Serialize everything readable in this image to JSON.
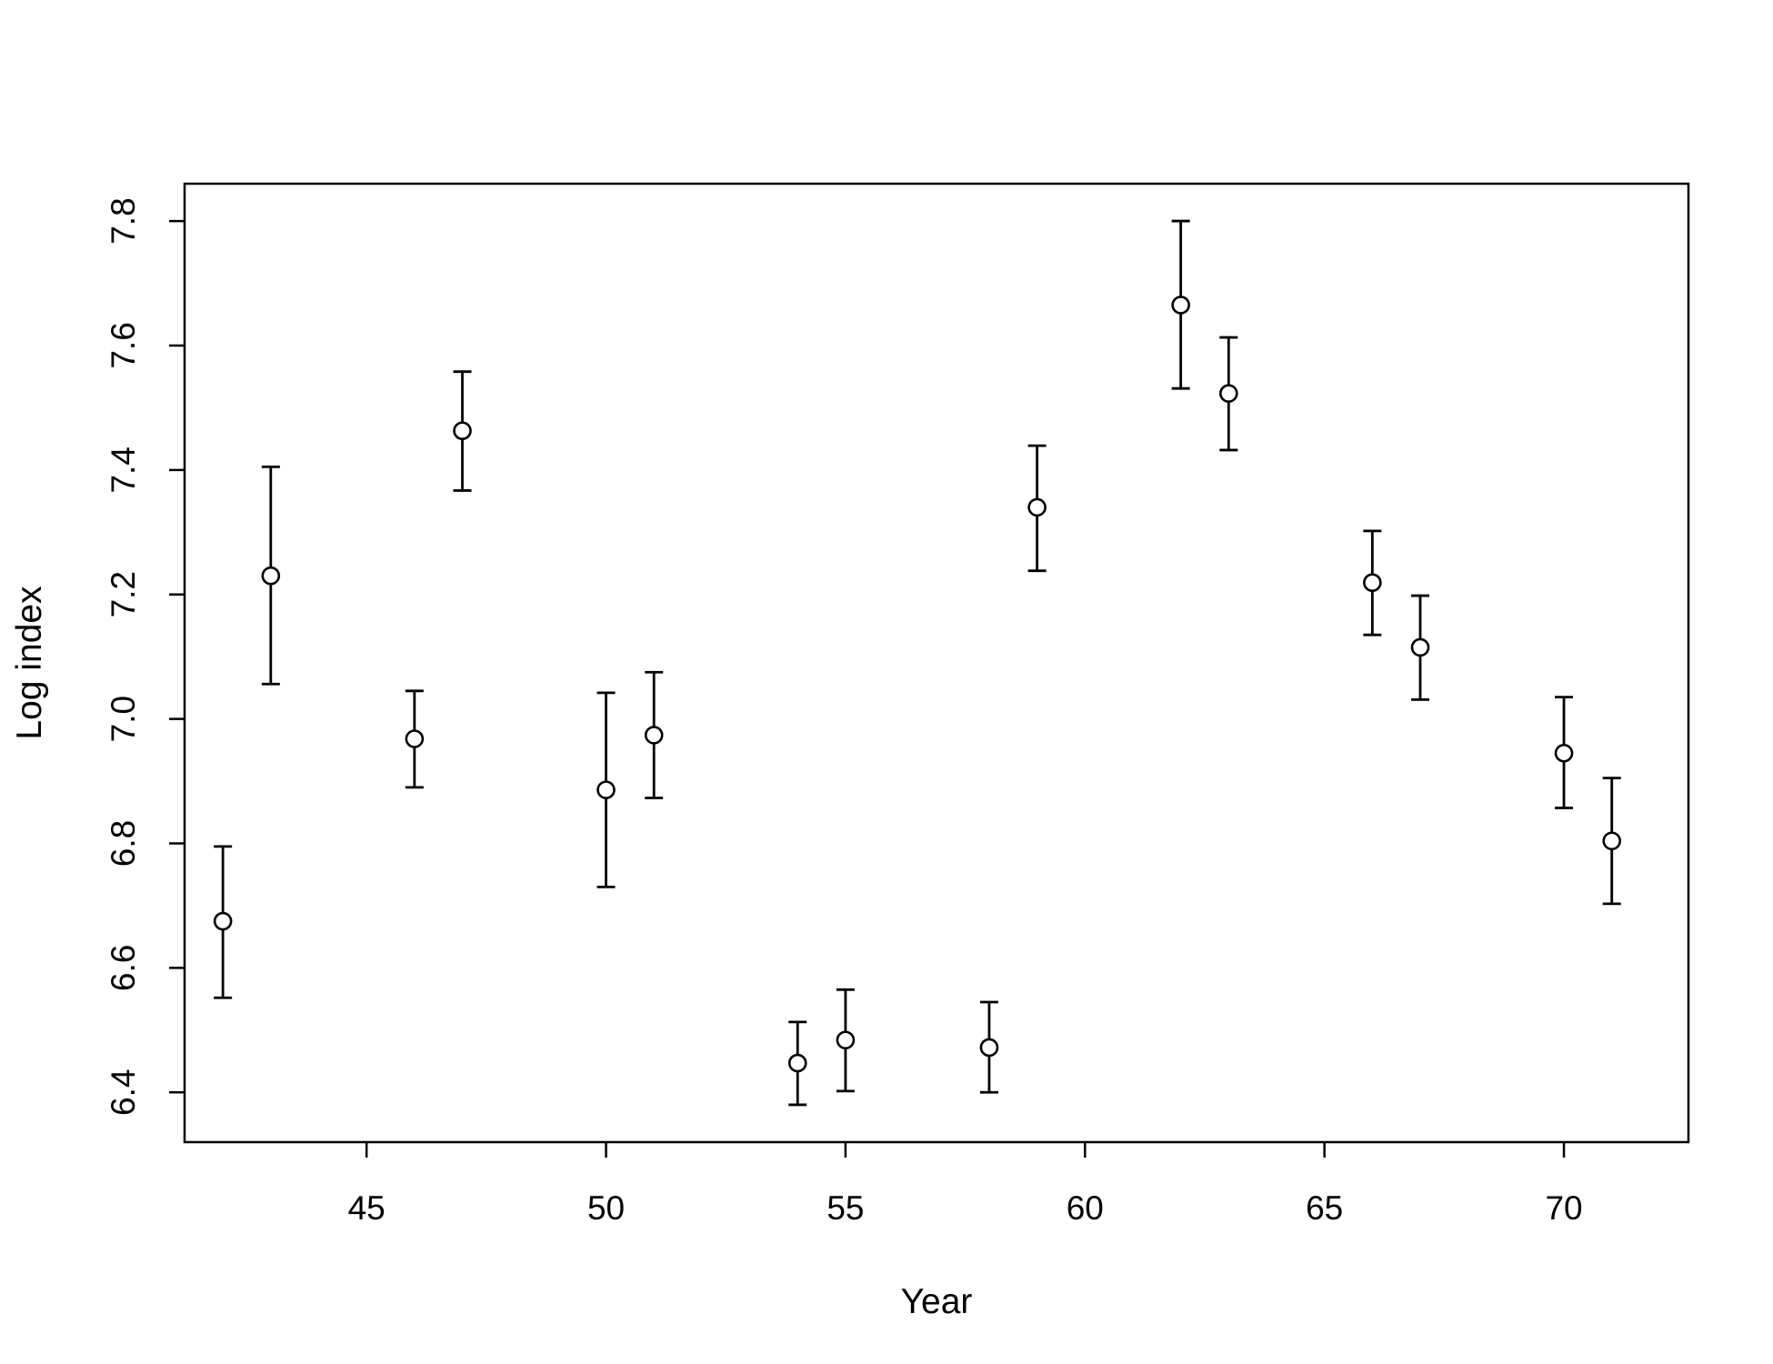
{
  "chart_data": {
    "type": "scatter",
    "title": "",
    "xlabel": "Year",
    "ylabel": "Log index",
    "xlim": [
      41.2,
      72.6
    ],
    "ylim": [
      6.32,
      7.86
    ],
    "x_ticks": [
      45,
      50,
      55,
      60,
      65,
      70
    ],
    "y_ticks": [
      6.4,
      6.6,
      6.8,
      7.0,
      7.2,
      7.4,
      7.6,
      7.8
    ],
    "x_tick_labels": [
      "45",
      "50",
      "55",
      "60",
      "65",
      "70"
    ],
    "y_tick_labels": [
      "6.4",
      "6.6",
      "6.8",
      "7.0",
      "7.2",
      "7.4",
      "7.6",
      "7.8"
    ],
    "grid": false,
    "legend": "none",
    "marker": "open-circle",
    "error_bars": true,
    "points": [
      {
        "x": 42,
        "y": 6.675,
        "lower": 6.552,
        "upper": 6.795
      },
      {
        "x": 43,
        "y": 7.23,
        "lower": 7.056,
        "upper": 7.405
      },
      {
        "x": 46,
        "y": 6.968,
        "lower": 6.89,
        "upper": 7.045
      },
      {
        "x": 47,
        "y": 7.463,
        "lower": 7.367,
        "upper": 7.558
      },
      {
        "x": 50,
        "y": 6.886,
        "lower": 6.73,
        "upper": 7.042
      },
      {
        "x": 51,
        "y": 6.974,
        "lower": 6.873,
        "upper": 7.075
      },
      {
        "x": 54,
        "y": 6.447,
        "lower": 6.38,
        "upper": 6.513
      },
      {
        "x": 55,
        "y": 6.484,
        "lower": 6.402,
        "upper": 6.565
      },
      {
        "x": 58,
        "y": 6.472,
        "lower": 6.4,
        "upper": 6.545
      },
      {
        "x": 59,
        "y": 7.34,
        "lower": 7.238,
        "upper": 7.439
      },
      {
        "x": 62,
        "y": 7.665,
        "lower": 7.531,
        "upper": 7.8
      },
      {
        "x": 63,
        "y": 7.523,
        "lower": 7.432,
        "upper": 7.613
      },
      {
        "x": 66,
        "y": 7.219,
        "lower": 7.135,
        "upper": 7.302
      },
      {
        "x": 67,
        "y": 7.115,
        "lower": 7.031,
        "upper": 7.198
      },
      {
        "x": 70,
        "y": 6.945,
        "lower": 6.857,
        "upper": 7.035
      },
      {
        "x": 71,
        "y": 6.804,
        "lower": 6.703,
        "upper": 6.905
      }
    ]
  }
}
